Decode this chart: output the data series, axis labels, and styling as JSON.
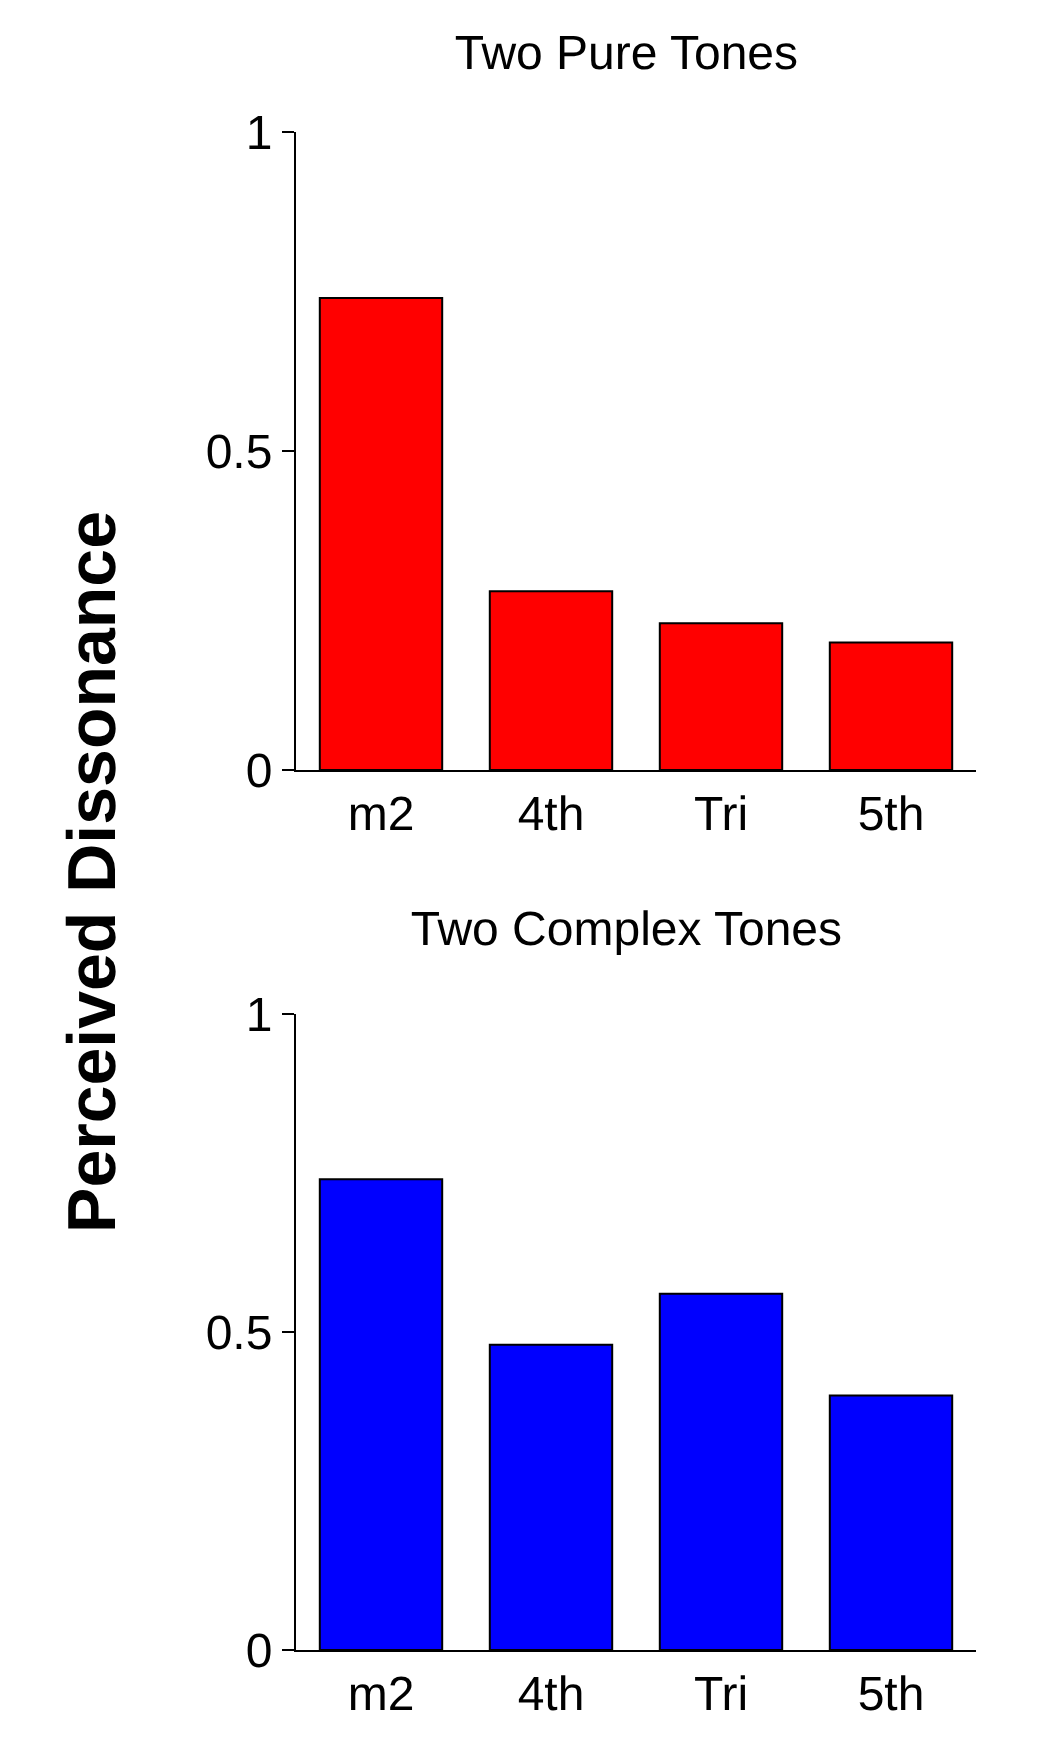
{
  "chart_data": [
    {
      "type": "bar",
      "title": "Two Pure Tones",
      "ylabel": "Perceived Dissonance",
      "categories": [
        "m2",
        "4th",
        "Tri",
        "5th"
      ],
      "values": [
        0.74,
        0.28,
        0.23,
        0.2
      ],
      "color": "#ff0000",
      "ylim": [
        0,
        1
      ],
      "yticks": [
        0,
        0.5,
        1
      ],
      "grid": false,
      "legend": false
    },
    {
      "type": "bar",
      "title": "Two Complex Tones",
      "categories": [
        "m2",
        "4th",
        "Tri",
        "5th"
      ],
      "values": [
        0.74,
        0.48,
        0.56,
        0.4
      ],
      "color": "#0000ff",
      "ylim": [
        0,
        1
      ],
      "yticks": [
        0,
        0.5,
        1
      ],
      "grid": false,
      "legend": false
    }
  ]
}
